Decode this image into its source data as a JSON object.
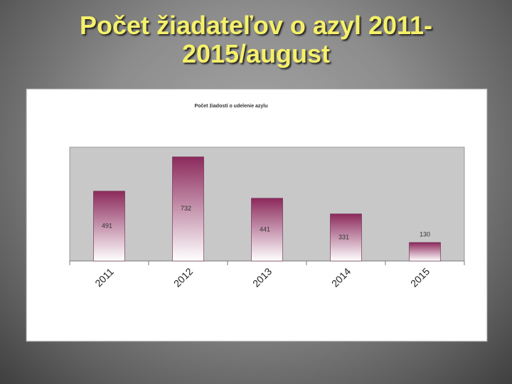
{
  "slide_title": "Počet žiadateľov o azyl 2011-2015/august",
  "chart_data": {
    "type": "bar",
    "title": "Počet žiadostí o udelenie azylu",
    "categories": [
      "2011",
      "2012",
      "2013",
      "2014",
      "2015"
    ],
    "values": [
      491,
      732,
      441,
      331,
      130
    ],
    "color": "#8c2a5c"
  }
}
